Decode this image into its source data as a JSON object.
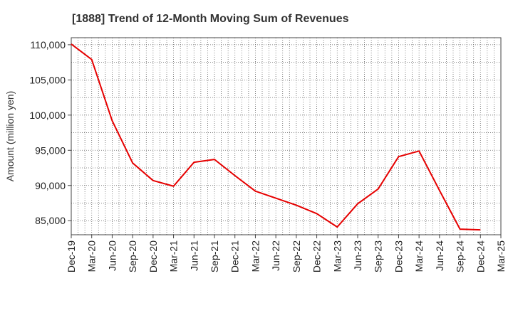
{
  "chart_data": {
    "type": "line",
    "title": "[1888]  Trend of 12-Month Moving Sum of Revenues",
    "xlabel": "",
    "ylabel": "Amount (million yen)",
    "ylim": [
      83000,
      111000
    ],
    "yticks": [
      85000,
      90000,
      95000,
      100000,
      105000,
      110000
    ],
    "ytick_labels": [
      "85,000",
      "90,000",
      "95,000",
      "100,000",
      "105,000",
      "110,000"
    ],
    "xtick_labels": [
      "Dec-19",
      "Mar-20",
      "Jun-20",
      "Sep-20",
      "Dec-20",
      "Mar-21",
      "Jun-21",
      "Sep-21",
      "Dec-21",
      "Mar-22",
      "Jun-22",
      "Sep-22",
      "Dec-22",
      "Mar-23",
      "Jun-23",
      "Sep-23",
      "Dec-23",
      "Mar-24",
      "Jun-24",
      "Sep-24",
      "Dec-24",
      "Mar-25"
    ],
    "grid": true,
    "series": [
      {
        "color": "#e60000",
        "x": [
          "Dec-19",
          "Mar-20",
          "Jun-20",
          "Sep-20",
          "Dec-20",
          "Mar-21",
          "Jun-21",
          "Sep-21",
          "Dec-21",
          "Mar-22",
          "Jun-22",
          "Sep-22",
          "Dec-22",
          "Mar-23",
          "Jun-23",
          "Sep-23",
          "Dec-23",
          "Mar-24",
          "Jun-24",
          "Sep-24",
          "Dec-24"
        ],
        "values": [
          110100,
          107900,
          99200,
          93200,
          90700,
          89900,
          93300,
          93700,
          91400,
          89200,
          88200,
          87200,
          86000,
          84100,
          87400,
          89500,
          94100,
          94900,
          89300,
          83800,
          83700
        ]
      }
    ]
  }
}
